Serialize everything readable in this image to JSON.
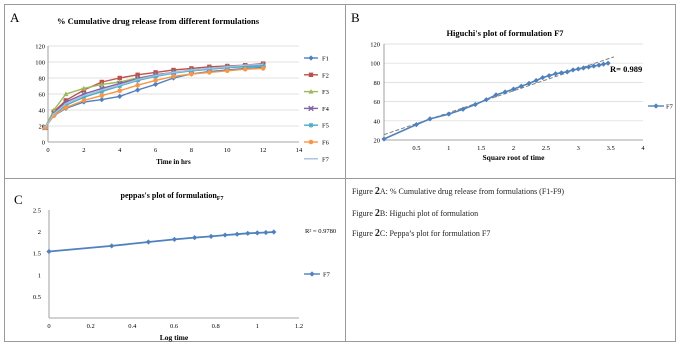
{
  "panels": {
    "A": {
      "letter": "A"
    },
    "B": {
      "letter": "B"
    },
    "C": {
      "letter": "C"
    }
  },
  "captions": [
    {
      "prefix": "Figure ",
      "num": "2",
      "text": "A: % Cumulative drug release from formulations (F1-F9)"
    },
    {
      "prefix": "Figure ",
      "num": "2",
      "text": "B: Higuchi plot of formulation"
    },
    {
      "prefix": "Figure ",
      "num": "2",
      "text": "C: Peppa’s plot for formulation F7"
    }
  ],
  "chart_data": [
    {
      "type": "line",
      "title": "% Cumulative drug release from different formulations",
      "xlabel": "Time in hrs",
      "ylabel": "",
      "xlim": [
        0,
        14
      ],
      "ylim": [
        0,
        120
      ],
      "xticks": [
        0,
        2,
        4,
        6,
        8,
        10,
        12,
        14
      ],
      "yticks": [
        0,
        20,
        40,
        60,
        80,
        100,
        120
      ],
      "x": [
        -0.17,
        0.33,
        1,
        2,
        3,
        4,
        5,
        6,
        7,
        8,
        9,
        10,
        11,
        12
      ],
      "legend_position": "right",
      "series": [
        {
          "name": "F1",
          "color": "#4f81bd",
          "marker": "diamond",
          "values": [
            18,
            33,
            42,
            50,
            53,
            57,
            65,
            72,
            80,
            85,
            88,
            90,
            92,
            93
          ]
        },
        {
          "name": "F2",
          "color": "#c0504d",
          "marker": "square",
          "values": [
            18,
            38,
            52,
            65,
            75,
            80,
            84,
            87,
            90,
            92,
            94,
            95,
            96,
            98
          ]
        },
        {
          "name": "F3",
          "color": "#9bbb59",
          "marker": "triangle",
          "values": [
            18,
            40,
            60,
            67,
            72,
            75,
            80,
            84,
            87,
            90,
            92,
            94,
            95,
            97
          ]
        },
        {
          "name": "F4",
          "color": "#8064a2",
          "marker": "x",
          "values": [
            18,
            36,
            50,
            60,
            67,
            73,
            79,
            84,
            87,
            89,
            91,
            93,
            95,
            96
          ]
        },
        {
          "name": "F5",
          "color": "#4bacc6",
          "marker": "star",
          "values": [
            18,
            34,
            46,
            56,
            63,
            70,
            77,
            82,
            86,
            89,
            91,
            93,
            94,
            95
          ]
        },
        {
          "name": "F6",
          "color": "#f79646",
          "marker": "circle",
          "values": [
            18,
            33,
            43,
            52,
            58,
            64,
            71,
            77,
            82,
            85,
            87,
            89,
            91,
            92
          ]
        },
        {
          "name": "F7",
          "color": "#a6c0e0",
          "marker": "none",
          "values": [
            18,
            35,
            48,
            58,
            65,
            71,
            78,
            83,
            87,
            90,
            92,
            94,
            96,
            97
          ]
        }
      ]
    },
    {
      "type": "scatter",
      "title": "Higuchi's plot of formulation F7",
      "xlabel": "Square root of time",
      "ylabel": "",
      "xlim": [
        0,
        4
      ],
      "ylim": [
        20,
        120
      ],
      "xticks": [
        0.5,
        1,
        1.5,
        2,
        2.5,
        3,
        3.5,
        4
      ],
      "xtick_labels": [
        "0.5",
        "1",
        "1.5",
        "2",
        "2.5",
        "3",
        "3.5",
        "4"
      ],
      "yticks": [
        20,
        40,
        60,
        80,
        100,
        120
      ],
      "annotation": "R= 0.989",
      "legend_position": "right",
      "trendline": true,
      "series": [
        {
          "name": "F7",
          "color": "#4f81bd",
          "x": [
            0,
            0.5,
            0.71,
            1,
            1.22,
            1.41,
            1.58,
            1.73,
            1.87,
            2,
            2.12,
            2.24,
            2.35,
            2.45,
            2.55,
            2.65,
            2.74,
            2.83,
            2.92,
            3,
            3.08,
            3.16,
            3.24,
            3.32,
            3.39,
            3.46
          ],
          "values": [
            21,
            36,
            42,
            47,
            52,
            57,
            62,
            67,
            70,
            73,
            76,
            79,
            82,
            85,
            87,
            89,
            90,
            91,
            93,
            94,
            95,
            96,
            97,
            98,
            99,
            100
          ]
        }
      ]
    },
    {
      "type": "line",
      "title": "peppas's plot of formulation",
      "title_suffix": "F7",
      "xlabel": "Log time",
      "ylabel": "",
      "xlim": [
        0,
        1.2
      ],
      "ylim": [
        0,
        2.5
      ],
      "xticks": [
        0,
        0.2,
        0.4,
        0.6,
        0.8,
        1,
        1.2
      ],
      "yticks": [
        0,
        0.5,
        1,
        1.5,
        2,
        2.5
      ],
      "annotation": "R² = 0.9780",
      "legend_position": "right",
      "series": [
        {
          "name": "F7",
          "color": "#4f81bd",
          "x": [
            0,
            0.301,
            0.477,
            0.602,
            0.699,
            0.778,
            0.845,
            0.903,
            0.954,
            1,
            1.041,
            1.079
          ],
          "values": [
            1.54,
            1.67,
            1.76,
            1.82,
            1.86,
            1.89,
            1.92,
            1.94,
            1.96,
            1.97,
            1.98,
            1.99
          ]
        }
      ]
    }
  ]
}
